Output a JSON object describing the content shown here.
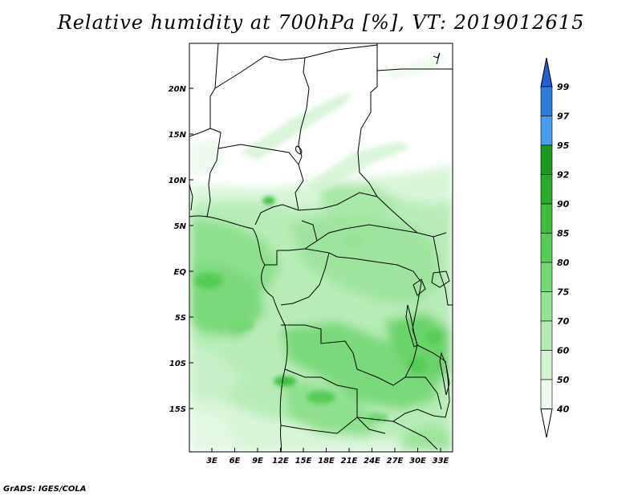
{
  "title": "Relative humidity at 700hPa [%], VT: 2019012615",
  "footer": "GrADS: IGES/COLA",
  "map": {
    "lat_labels": [
      "20N",
      "15N",
      "10N",
      "5N",
      "EQ",
      "5S",
      "10S",
      "15S"
    ],
    "lon_labels": [
      "3E",
      "6E",
      "9E",
      "12E",
      "15E",
      "18E",
      "21E",
      "24E",
      "27E",
      "30E",
      "33E"
    ]
  },
  "colorbar": {
    "levels": [
      "99",
      "97",
      "95",
      "92",
      "90",
      "85",
      "80",
      "75",
      "70",
      "60",
      "50",
      "40"
    ],
    "colors": [
      "#1f5fcf",
      "#2d7be0",
      "#4a9cf0",
      "#1b9a1b",
      "#2aaa2a",
      "#3cbd3c",
      "#55cc55",
      "#74d874",
      "#95e295",
      "#b4ebb4",
      "#d1f3d1",
      "#ebfaeb"
    ]
  }
}
